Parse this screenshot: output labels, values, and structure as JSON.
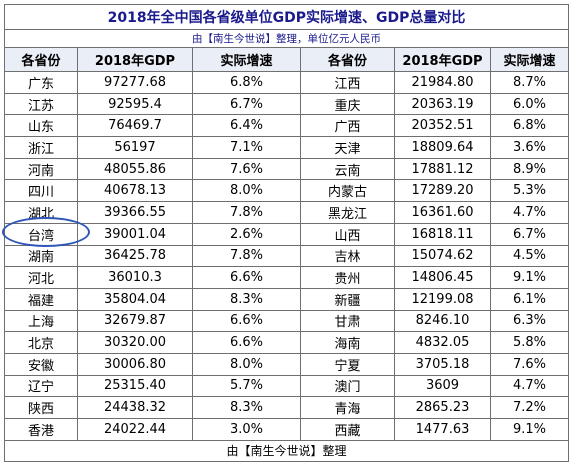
{
  "title": "2018年全中国各省级单位GDP实际增速、GDP总量对比",
  "subtitle": "由【南生今世说】整理，单位亿元人民币",
  "headers": [
    "各省份",
    "2018年GDP",
    "实际增速",
    "各省份",
    "2018年GDP",
    "实际增速"
  ],
  "rows": [
    {
      "l": [
        "广东",
        "97277.68",
        "6.8%"
      ],
      "r": [
        "江西",
        "21984.80",
        "8.7%"
      ]
    },
    {
      "l": [
        "江苏",
        "92595.4",
        "6.7%"
      ],
      "r": [
        "重庆",
        "20363.19",
        "6.0%"
      ]
    },
    {
      "l": [
        "山东",
        "76469.7",
        "6.4%"
      ],
      "r": [
        "广西",
        "20352.51",
        "6.8%"
      ]
    },
    {
      "l": [
        "浙江",
        "56197",
        "7.1%"
      ],
      "r": [
        "天津",
        "18809.64",
        "3.6%"
      ]
    },
    {
      "l": [
        "河南",
        "48055.86",
        "7.6%"
      ],
      "r": [
        "云南",
        "17881.12",
        "8.9%"
      ]
    },
    {
      "l": [
        "四川",
        "40678.13",
        "8.0%"
      ],
      "r": [
        "内蒙古",
        "17289.20",
        "5.3%"
      ]
    },
    {
      "l": [
        "湖北",
        "39366.55",
        "7.8%"
      ],
      "r": [
        "黑龙江",
        "16361.60",
        "4.7%"
      ]
    },
    {
      "l": [
        "台湾",
        "39001.04",
        "2.6%"
      ],
      "r": [
        "山西",
        "16818.11",
        "6.7%"
      ]
    },
    {
      "l": [
        "湖南",
        "36425.78",
        "7.8%"
      ],
      "r": [
        "吉林",
        "15074.62",
        "4.5%"
      ]
    },
    {
      "l": [
        "河北",
        "36010.3",
        "6.6%"
      ],
      "r": [
        "贵州",
        "14806.45",
        "9.1%"
      ]
    },
    {
      "l": [
        "福建",
        "35804.04",
        "8.3%"
      ],
      "r": [
        "新疆",
        "12199.08",
        "6.1%"
      ]
    },
    {
      "l": [
        "上海",
        "32679.87",
        "6.6%"
      ],
      "r": [
        "甘肃",
        "8246.10",
        "6.3%"
      ]
    },
    {
      "l": [
        "北京",
        "30320.00",
        "6.6%"
      ],
      "r": [
        "海南",
        "4832.05",
        "5.8%"
      ]
    },
    {
      "l": [
        "安徽",
        "30006.80",
        "8.0%"
      ],
      "r": [
        "宁夏",
        "3705.18",
        "7.6%"
      ]
    },
    {
      "l": [
        "辽宁",
        "25315.40",
        "5.7%"
      ],
      "r": [
        "澳门",
        "3609",
        "4.7%"
      ]
    },
    {
      "l": [
        "陕西",
        "24438.32",
        "8.3%"
      ],
      "r": [
        "青海",
        "2865.23",
        "7.2%"
      ]
    },
    {
      "l": [
        "香港",
        "24022.44",
        "3.0%"
      ],
      "r": [
        "西藏",
        "1477.63",
        "9.1%"
      ]
    }
  ],
  "footer": "由【南生今世说】整理",
  "colors": {
    "title": "#1a1a8c",
    "border": "#6f6f6f",
    "highlight_circle": "#2f55b8"
  }
}
